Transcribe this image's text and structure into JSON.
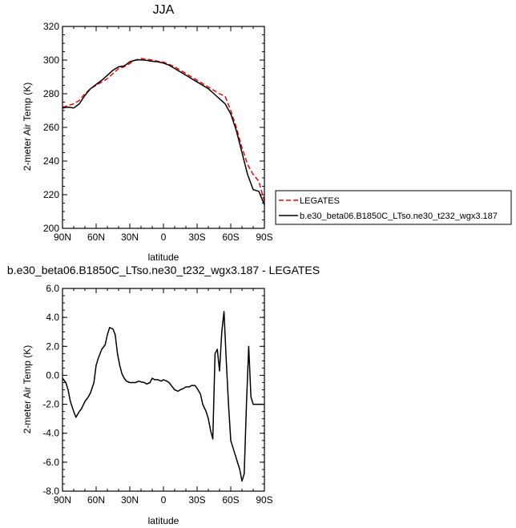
{
  "chart_data": [
    {
      "type": "line",
      "title": "JJA",
      "xlabel": "latitude",
      "ylabel": "2-meter Air Temp (K)",
      "xlim": [
        90,
        -90
      ],
      "ylim": [
        200,
        320
      ],
      "x_ticks": [
        90,
        60,
        30,
        0,
        -30,
        -60,
        -90
      ],
      "x_tick_labels": [
        "90N",
        "60N",
        "30N",
        "0",
        "30S",
        "60S",
        "90S"
      ],
      "y_ticks": [
        200,
        220,
        240,
        260,
        280,
        300,
        320
      ],
      "y_tick_labels": [
        "200",
        "220",
        "240",
        "260",
        "280",
        "300",
        "320"
      ],
      "legend_position": "outside-right",
      "series": [
        {
          "name": "LEGATES",
          "color": "#ff0000",
          "dash": "dashed",
          "x": [
            90,
            85,
            80,
            75,
            70,
            65,
            60,
            55,
            50,
            45,
            40,
            35,
            30,
            25,
            20,
            15,
            10,
            5,
            0,
            -5,
            -10,
            -15,
            -20,
            -25,
            -30,
            -35,
            -40,
            -45,
            -50,
            -55,
            -60,
            -65,
            -70,
            -75,
            -80,
            -85,
            -90
          ],
          "y": [
            272,
            273,
            274,
            276,
            280,
            283,
            285,
            287,
            289,
            292,
            295,
            296,
            298,
            300,
            301,
            300.5,
            300,
            299.3,
            298.8,
            297.5,
            296,
            294,
            292,
            290,
            288,
            286,
            284,
            282,
            280,
            278.5,
            270,
            260,
            248,
            238,
            232,
            228,
            216
          ]
        },
        {
          "name": "b.e30_beta06.B1850C_LTso.ne30_t232_wgx3.187",
          "color": "#000000",
          "dash": "solid",
          "x": [
            90,
            85,
            80,
            75,
            70,
            65,
            60,
            55,
            50,
            45,
            40,
            35,
            30,
            25,
            20,
            15,
            10,
            5,
            0,
            -5,
            -10,
            -15,
            -20,
            -25,
            -30,
            -35,
            -40,
            -45,
            -50,
            -55,
            -60,
            -65,
            -70,
            -75,
            -80,
            -85,
            -90
          ],
          "y": [
            271.5,
            272,
            271.5,
            274,
            279,
            283,
            285.5,
            288,
            291,
            294,
            296,
            296.5,
            299,
            300,
            300.2,
            299.8,
            299.3,
            299,
            298.2,
            297,
            295,
            293,
            291,
            289,
            287,
            285,
            283,
            280,
            277,
            274,
            268,
            258,
            245,
            232,
            223,
            222,
            214
          ]
        }
      ]
    },
    {
      "type": "line",
      "title": "b.e30_beta06.B1850C_LTso.ne30_t232_wgx3.187 - LEGATES",
      "xlabel": "latitude",
      "ylabel": "2-meter Air Temp (K)",
      "xlim": [
        90,
        -90
      ],
      "ylim": [
        -8,
        6
      ],
      "x_ticks": [
        90,
        60,
        30,
        0,
        -30,
        -60,
        -90
      ],
      "x_tick_labels": [
        "90N",
        "60N",
        "30N",
        "0",
        "30S",
        "60S",
        "90S"
      ],
      "y_ticks": [
        -8,
        -6,
        -4,
        -2,
        0,
        2,
        4,
        6
      ],
      "y_tick_labels": [
        "-8.0",
        "-6.0",
        "-4.0",
        "-2.0",
        "0.0",
        "2.0",
        "4.0",
        "6.0"
      ],
      "series": [
        {
          "color": "#000000",
          "dash": "solid",
          "x": [
            90,
            87,
            85,
            83,
            80,
            78,
            75,
            73,
            70,
            67,
            65,
            62,
            60,
            58,
            55,
            52,
            50,
            48,
            45,
            43,
            41,
            39,
            37,
            35,
            33,
            30,
            27,
            25,
            22,
            20,
            17,
            15,
            12,
            10,
            8,
            5,
            2,
            0,
            -3,
            -5,
            -8,
            -10,
            -13,
            -15,
            -18,
            -20,
            -23,
            -25,
            -28,
            -30,
            -33,
            -35,
            -38,
            -40,
            -42,
            -44,
            -46,
            -48,
            -50,
            -52,
            -54,
            -56,
            -58,
            -60,
            -62,
            -64,
            -66,
            -68,
            -70,
            -72,
            -74,
            -76,
            -78,
            -80,
            -82,
            -84,
            -86,
            -88,
            -90
          ],
          "y": [
            -0.2,
            -0.5,
            -1,
            -1.8,
            -2.5,
            -2.9,
            -2.5,
            -2.3,
            -1.8,
            -1.5,
            -1.2,
            -0.5,
            0.7,
            1.2,
            1.8,
            2.1,
            2.8,
            3.3,
            3.2,
            2.8,
            1.5,
            0.7,
            0.1,
            -0.2,
            -0.4,
            -0.5,
            -0.5,
            -0.5,
            -0.4,
            -0.45,
            -0.5,
            -0.6,
            -0.5,
            -0.2,
            -0.3,
            -0.3,
            -0.4,
            -0.3,
            -0.4,
            -0.5,
            -0.8,
            -1,
            -1.1,
            -1.0,
            -0.9,
            -0.8,
            -0.8,
            -0.7,
            -0.7,
            -0.9,
            -1.3,
            -2.0,
            -2.5,
            -3.0,
            -3.8,
            -4.4,
            1.5,
            1.8,
            0.3,
            3.0,
            4.4,
            1.0,
            -2.0,
            -4.5,
            -5.0,
            -5.5,
            -6.0,
            -6.5,
            -7.3,
            -6.8,
            -2.0,
            2.0,
            -1.5,
            -2.0,
            -2.0,
            -2.0,
            -2.0,
            -2.0,
            -2.0
          ]
        }
      ]
    }
  ]
}
